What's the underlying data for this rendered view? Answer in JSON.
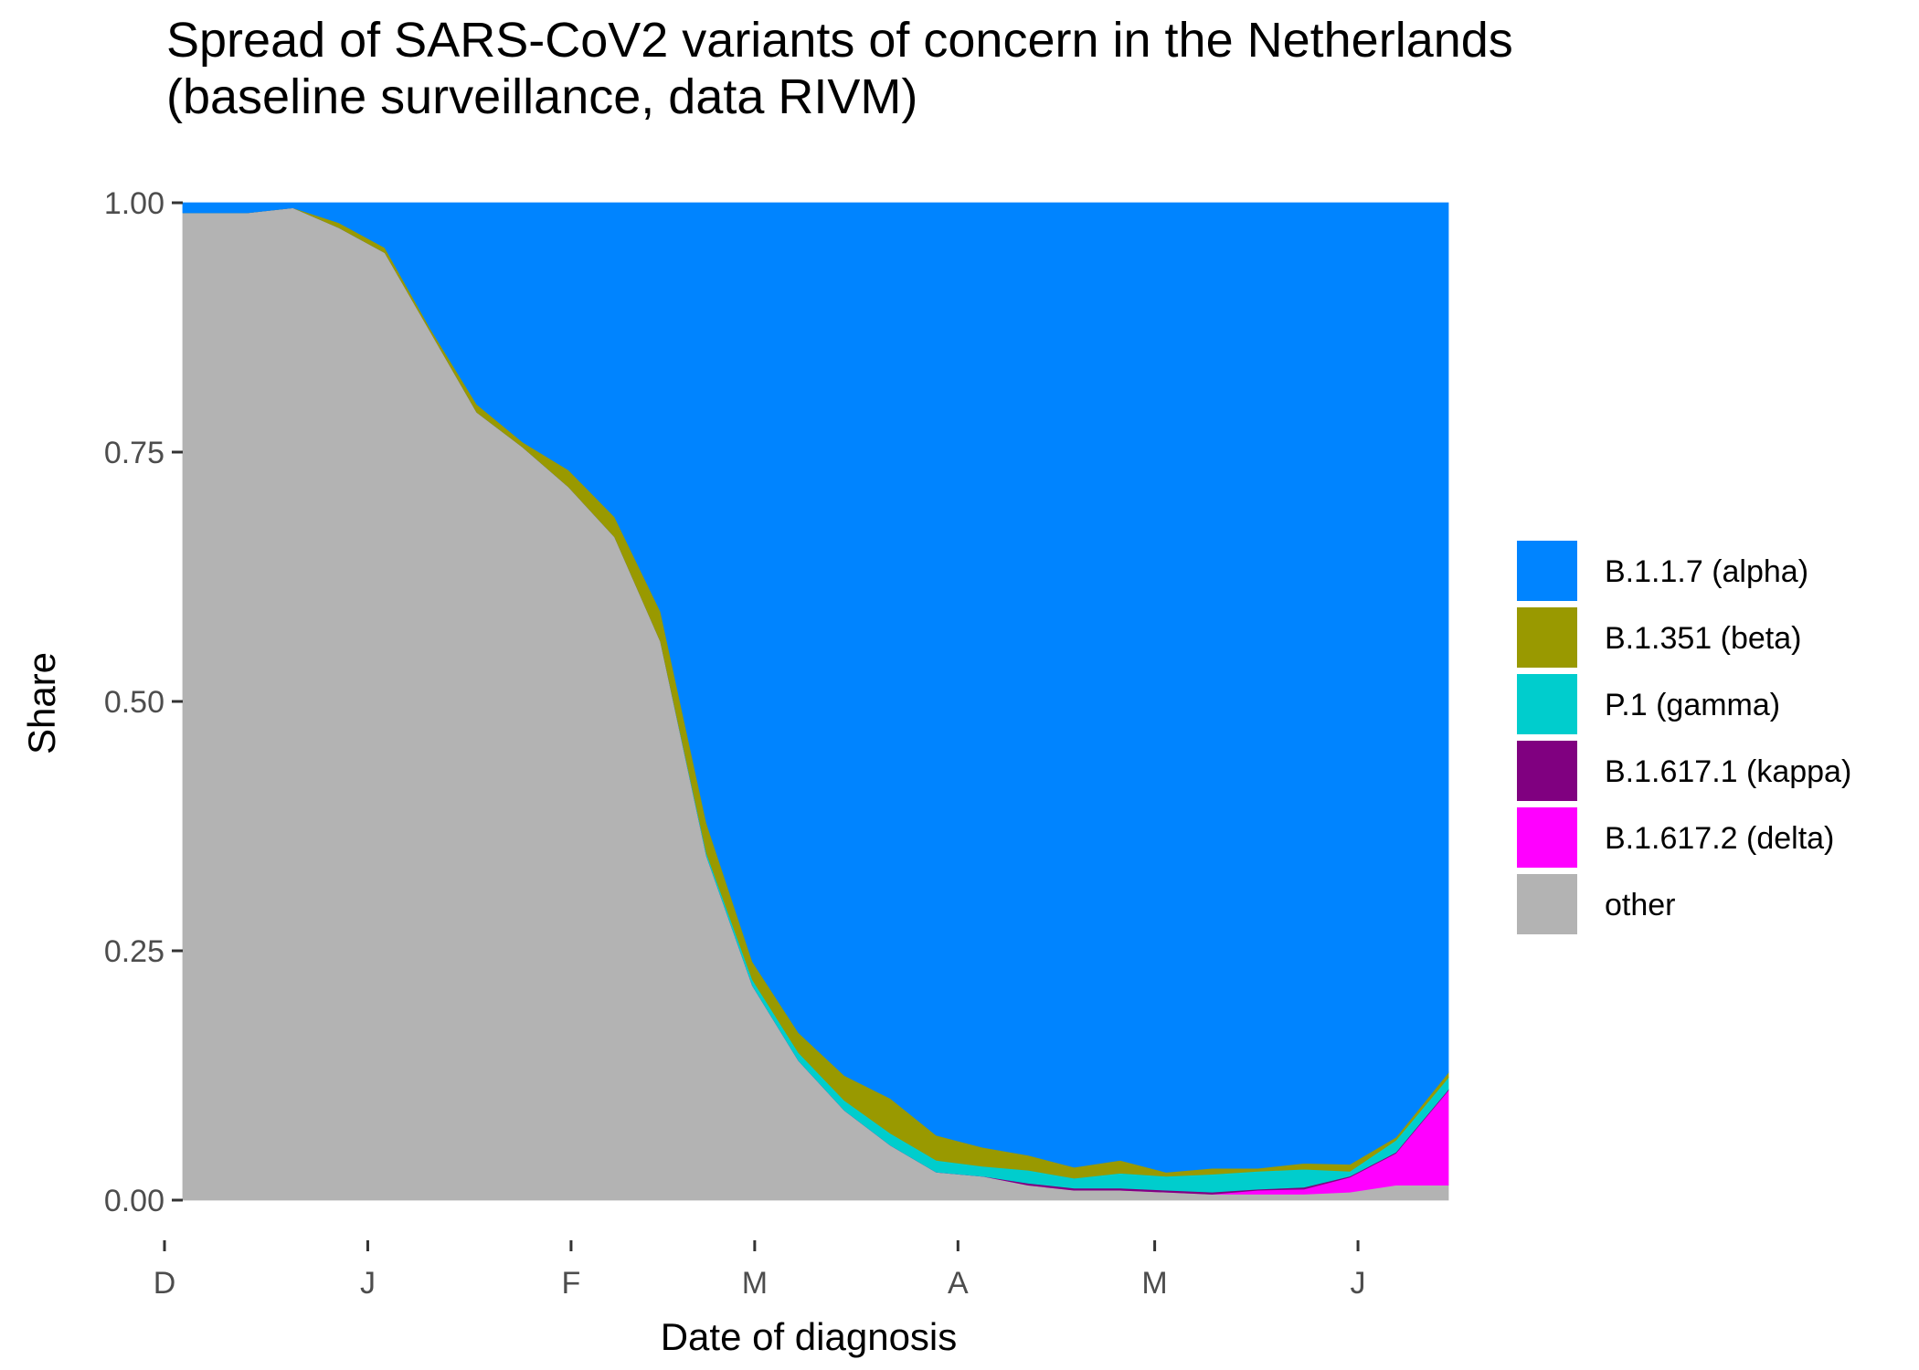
{
  "chart_data": {
    "type": "area",
    "title": "Spread of SARS-CoV2 variants of concern in the Netherlands\n(baseline surveillance, data RIVM)",
    "title_lines": [
      "Spread of SARS-CoV2 variants of concern in the Netherlands",
      "(baseline surveillance, data RIVM)"
    ],
    "xlabel": "Date of diagnosis",
    "ylabel": "Share",
    "ylim": [
      0,
      1
    ],
    "xlim": [
      "2020-12-01",
      "2021-06-12"
    ],
    "x_ticks": [
      {
        "label": "D",
        "value": "2020-12-01"
      },
      {
        "label": "J",
        "value": "2021-01-01"
      },
      {
        "label": "F",
        "value": "2021-02-01"
      },
      {
        "label": "M",
        "value": "2021-03-01"
      },
      {
        "label": "A",
        "value": "2021-04-01"
      },
      {
        "label": "M",
        "value": "2021-05-01"
      },
      {
        "label": "J",
        "value": "2021-06-01"
      }
    ],
    "y_ticks": [
      {
        "label": "0.00",
        "value": 0
      },
      {
        "label": "0.25",
        "value": 0.25
      },
      {
        "label": "0.50",
        "value": 0.5
      },
      {
        "label": "0.75",
        "value": 0.75
      },
      {
        "label": "1.00",
        "value": 1
      }
    ],
    "legend_position": "right",
    "grid": false,
    "stacking_order": [
      "other",
      "B.1.617.2 (delta)",
      "B.1.617.1 (kappa)",
      "P.1 (gamma)",
      "B.1.351 (beta)",
      "B.1.1.7 (alpha)"
    ],
    "x": [
      "2020-12-04",
      "2020-12-11",
      "2020-12-18",
      "2020-12-25",
      "2021-01-01",
      "2021-01-08",
      "2021-01-15",
      "2021-01-22",
      "2021-01-29",
      "2021-02-05",
      "2021-02-12",
      "2021-02-19",
      "2021-02-26",
      "2021-03-05",
      "2021-03-12",
      "2021-03-19",
      "2021-03-26",
      "2021-04-02",
      "2021-04-09",
      "2021-04-16",
      "2021-04-23",
      "2021-04-30",
      "2021-05-07",
      "2021-05-14",
      "2021-05-21",
      "2021-05-28",
      "2021-06-04",
      "2021-06-09"
    ],
    "series": [
      {
        "name": "other",
        "color": "#b3b3b3",
        "values": [
          0.99,
          0.99,
          0.995,
          0.975,
          0.95,
          0.87,
          0.79,
          0.755,
          0.715,
          0.665,
          0.56,
          0.345,
          0.215,
          0.14,
          0.09,
          0.055,
          0.028,
          0.024,
          0.015,
          0.01,
          0.01,
          0.008,
          0.006,
          0.006,
          0.006,
          0.008,
          0.015,
          0.015
        ]
      },
      {
        "name": "B.1.617.2 (delta)",
        "color": "#ff00ff",
        "values": [
          0,
          0,
          0,
          0,
          0,
          0,
          0,
          0,
          0,
          0,
          0,
          0,
          0,
          0,
          0,
          0,
          0,
          0,
          0,
          0,
          0,
          0,
          0,
          0.004,
          0.005,
          0.015,
          0.032,
          0.095
        ]
      },
      {
        "name": "B.1.617.1 (kappa)",
        "color": "#800080",
        "values": [
          0,
          0,
          0,
          0,
          0,
          0,
          0,
          0,
          0,
          0,
          0,
          0,
          0,
          0,
          0,
          0,
          0,
          0,
          0.002,
          0.002,
          0.002,
          0.002,
          0.002,
          0.001,
          0.002,
          0.001,
          0.001,
          0.001
        ]
      },
      {
        "name": "P.1 (gamma)",
        "color": "#00cdcd",
        "values": [
          0,
          0,
          0,
          0,
          0,
          0,
          0,
          0,
          0,
          0,
          0,
          0.003,
          0.006,
          0.008,
          0.01,
          0.012,
          0.012,
          0.01,
          0.013,
          0.01,
          0.015,
          0.014,
          0.018,
          0.018,
          0.018,
          0.005,
          0.012,
          0.012
        ]
      },
      {
        "name": "B.1.351 (beta)",
        "color": "#999900",
        "values": [
          0,
          0,
          0,
          0.005,
          0.005,
          0.003,
          0.008,
          0.005,
          0.017,
          0.02,
          0.03,
          0.03,
          0.018,
          0.02,
          0.025,
          0.035,
          0.025,
          0.019,
          0.015,
          0.011,
          0.013,
          0.004,
          0.006,
          0.003,
          0.006,
          0.007,
          0.003,
          0.005
        ]
      },
      {
        "name": "B.1.1.7 (alpha)",
        "color": "#0084ff",
        "values": [
          0.01,
          0.01,
          0.005,
          0.02,
          0.045,
          0.127,
          0.202,
          0.24,
          0.268,
          0.315,
          0.41,
          0.622,
          0.761,
          0.832,
          0.875,
          0.898,
          0.935,
          0.947,
          0.955,
          0.967,
          0.96,
          0.972,
          0.968,
          0.968,
          0.963,
          0.964,
          0.937,
          0.872
        ]
      }
    ],
    "legend": [
      {
        "label": "B.1.1.7 (alpha)",
        "color": "#0084ff"
      },
      {
        "label": "B.1.351 (beta)",
        "color": "#999900"
      },
      {
        "label": "P.1 (gamma)",
        "color": "#00cdcd"
      },
      {
        "label": "B.1.617.1 (kappa)",
        "color": "#800080"
      },
      {
        "label": "B.1.617.2 (delta)",
        "color": "#ff00ff"
      },
      {
        "label": "other",
        "color": "#b3b3b3"
      }
    ]
  }
}
